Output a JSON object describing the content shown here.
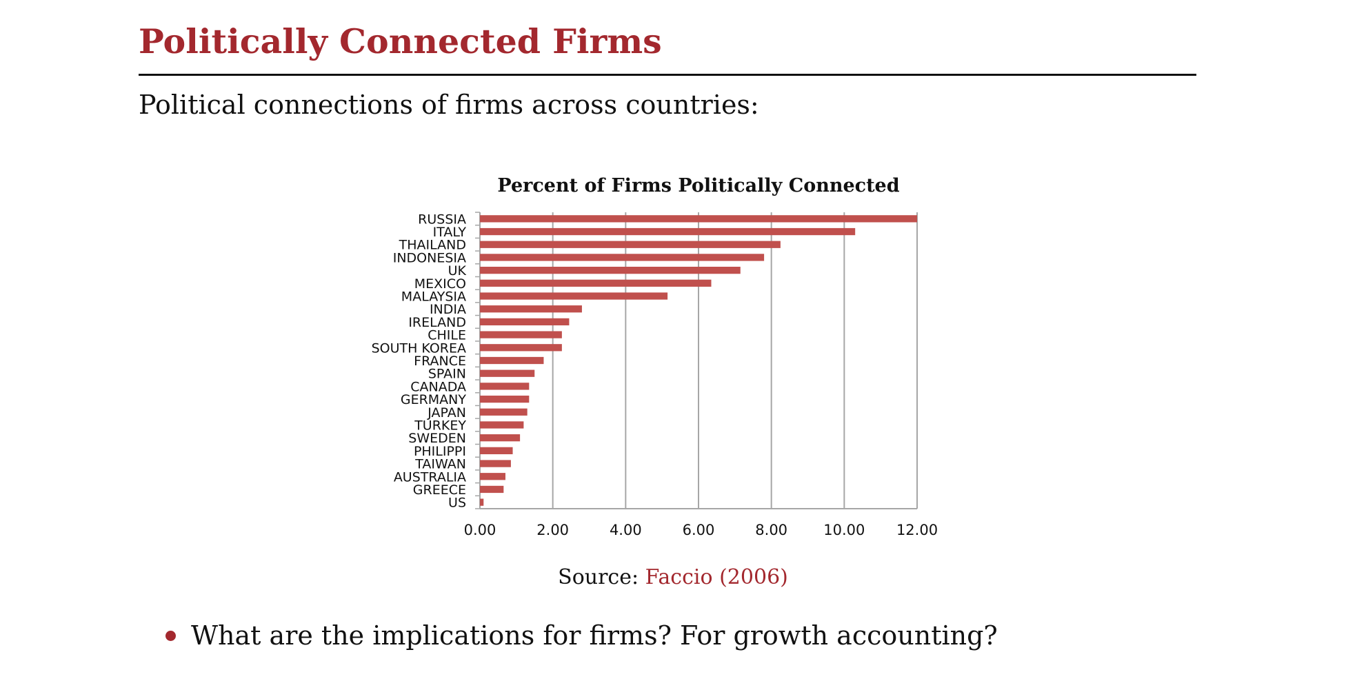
{
  "slide": {
    "title": "Politically Connected Firms",
    "subtitle": "Political connections of firms across countries:",
    "source_prefix": "Source:",
    "source_link": "Faccio (2006)",
    "bullet": "What are the implications for firms? For growth accounting?"
  },
  "colors": {
    "accent": "#a3282e",
    "bar": "#c0504d",
    "grid": "#a6a6a6"
  },
  "chart_data": {
    "type": "bar",
    "orientation": "horizontal",
    "title": "Percent of Firms Politically Connected",
    "categories": [
      "RUSSIA",
      "ITALY",
      "THAILAND",
      "INDONESIA",
      "UK",
      "MEXICO",
      "MALAYSIA",
      "INDIA",
      "IRELAND",
      "CHILE",
      "SOUTH KOREA",
      "FRANCE",
      "SPAIN",
      "CANADA",
      "GERMANY",
      "JAPAN",
      "TURKEY",
      "SWEDEN",
      "PHILIPPI",
      "TAIWAN",
      "AUSTRALIA",
      "GREECE",
      "US"
    ],
    "values": [
      12.0,
      10.3,
      8.25,
      7.8,
      7.15,
      6.35,
      5.15,
      2.8,
      2.45,
      2.25,
      2.25,
      1.75,
      1.5,
      1.35,
      1.35,
      1.3,
      1.2,
      1.1,
      0.9,
      0.85,
      0.7,
      0.65,
      0.1
    ],
    "xlim": [
      0,
      12
    ],
    "xticks": [
      "0.00",
      "2.00",
      "4.00",
      "6.00",
      "8.00",
      "10.00",
      "12.00"
    ],
    "xtick_values": [
      0,
      2,
      4,
      6,
      8,
      10,
      12
    ],
    "grid": true,
    "legend": "none"
  }
}
